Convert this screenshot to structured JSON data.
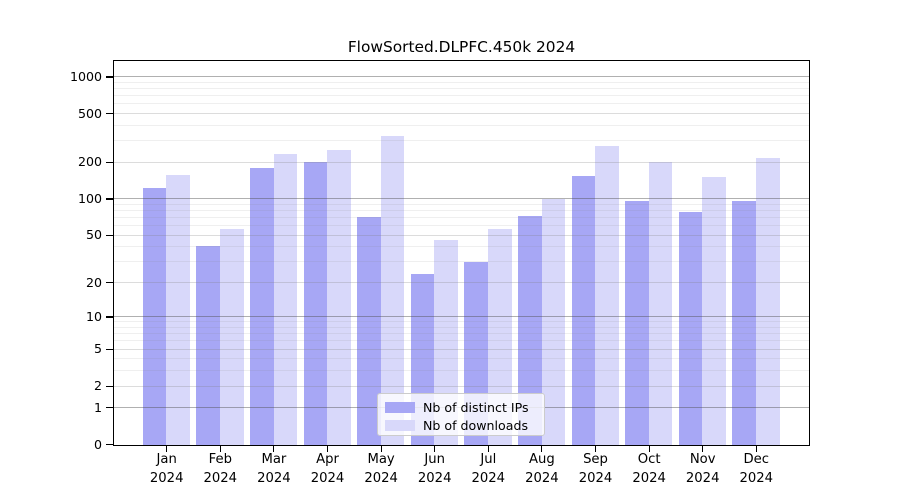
{
  "chart_data": {
    "type": "bar",
    "title": "FlowSorted.DLPFC.450k 2024",
    "categories": [
      "Jan 2024",
      "Feb 2024",
      "Mar 2024",
      "Apr 2024",
      "May 2024",
      "Jun 2024",
      "Jul 2024",
      "Aug 2024",
      "Sep 2024",
      "Oct 2024",
      "Nov 2024",
      "Dec 2024"
    ],
    "x_tick_months": [
      "Jan",
      "Feb",
      "Mar",
      "Apr",
      "May",
      "Jun",
      "Jul",
      "Aug",
      "Sep",
      "Oct",
      "Nov",
      "Dec"
    ],
    "x_tick_year": "2024",
    "series": [
      {
        "name": "Nb of distinct IPs",
        "color": "#a7a7f5",
        "values": [
          123,
          41,
          180,
          204,
          72,
          24,
          30,
          73,
          155,
          97,
          78,
          97
        ]
      },
      {
        "name": "Nb of downloads",
        "color": "#d8d8fa",
        "values": [
          158,
          57,
          238,
          254,
          333,
          46,
          57,
          100,
          272,
          203,
          152,
          219
        ]
      }
    ],
    "xlabel": "",
    "ylabel": "",
    "yscale": "log1p",
    "ylim": [
      0,
      1400
    ],
    "y_ticks": [
      0,
      1,
      2,
      5,
      10,
      20,
      50,
      100,
      200,
      500,
      1000
    ],
    "y_major_gridlines": [
      1,
      10,
      100,
      1000
    ],
    "y_sub_gridlines": [
      2,
      5,
      20,
      50,
      200,
      500
    ],
    "y_minor_gridlines": [
      3,
      4,
      6,
      7,
      8,
      9,
      30,
      40,
      60,
      70,
      80,
      90,
      300,
      400,
      600,
      700,
      800,
      900
    ],
    "grid": true,
    "legend_position": "bottom-center"
  },
  "colors": {
    "bar_distinct_ips": "#a7a7f5",
    "bar_downloads": "#d8d8fa",
    "axis": "#000000",
    "grid_major": "#a0a0a0",
    "grid_minor": "#e8e8e8",
    "legend_border": "#cccccc"
  }
}
